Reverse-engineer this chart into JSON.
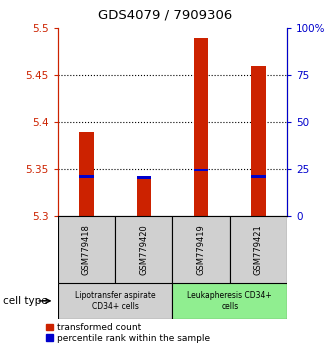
{
  "title": "GDS4079 / 7909306",
  "samples": [
    "GSM779418",
    "GSM779420",
    "GSM779419",
    "GSM779421"
  ],
  "red_values": [
    5.39,
    5.34,
    5.49,
    5.46
  ],
  "blue_values": [
    5.342,
    5.341,
    5.349,
    5.342
  ],
  "y_min": 5.3,
  "y_max": 5.5,
  "y_ticks_left": [
    5.3,
    5.35,
    5.4,
    5.45,
    5.5
  ],
  "y_ticks_right": [
    0,
    25,
    50,
    75,
    100
  ],
  "y_right_labels": [
    "0",
    "25",
    "50",
    "75",
    "100%"
  ],
  "gridlines": [
    5.35,
    5.4,
    5.45
  ],
  "bar_width": 0.25,
  "red_color": "#cc2200",
  "blue_color": "#0000cc",
  "group1_color": "#d0d0d0",
  "group2_color": "#90ee90",
  "group1_label": "Lipotransfer aspirate\nCD34+ cells",
  "group2_label": "Leukapheresis CD34+\ncells",
  "cell_type_label": "cell type",
  "legend_red": "transformed count",
  "legend_blue": "percentile rank within the sample"
}
